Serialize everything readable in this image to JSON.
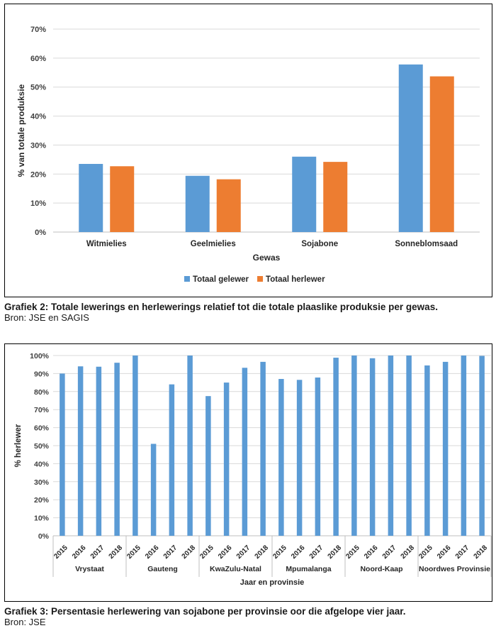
{
  "charts": [
    {
      "caption_title": "Grafiek 2: Totale lewerings en herlewerings relatief tot die totale plaaslike produksie per gewas.",
      "caption_source": "Bron: JSE en SAGIS"
    },
    {
      "caption_title": "Grafiek 3: Persentasie herlewering van sojabone per provinsie oor die afgelope vier jaar.",
      "caption_source": "Bron: JSE"
    }
  ],
  "chart_data": [
    {
      "type": "bar",
      "xlabel": "Gewas",
      "ylabel": "% van totale produksie",
      "ylim": [
        0,
        70
      ],
      "yticks": [
        "0%",
        "10%",
        "20%",
        "30%",
        "40%",
        "50%",
        "60%",
        "70%"
      ],
      "grid": true,
      "legend_position": "bottom",
      "categories": [
        "Witmielies",
        "Geelmielies",
        "Sojabone",
        "Sonneblomsaad"
      ],
      "series": [
        {
          "name": "Totaal gelewer",
          "color": "#5b9bd5",
          "values": [
            23.5,
            19.4,
            26.0,
            57.8
          ]
        },
        {
          "name": "Totaal herlewer",
          "color": "#ed7d31",
          "values": [
            22.7,
            18.2,
            24.2,
            53.7
          ]
        }
      ]
    },
    {
      "type": "bar",
      "xlabel": "Jaar en provinsie",
      "ylabel": "% herlewer",
      "ylim": [
        0,
        100
      ],
      "yticks": [
        "0%",
        "10%",
        "20%",
        "30%",
        "40%",
        "50%",
        "60%",
        "70%",
        "80%",
        "90%",
        "100%"
      ],
      "grid": true,
      "color": "#5b9bd5",
      "groups": [
        {
          "name": "Vrystaat",
          "years": [
            "2015",
            "2016",
            "2017",
            "2018"
          ],
          "values": [
            90,
            94,
            93.8,
            96
          ]
        },
        {
          "name": "Gauteng",
          "years": [
            "2015",
            "2016",
            "2017",
            "2018"
          ],
          "values": [
            100,
            51,
            84,
            100
          ]
        },
        {
          "name": "KwaZulu-Natal",
          "years": [
            "2015",
            "2016",
            "2017",
            "2018"
          ],
          "values": [
            77.5,
            85,
            93.2,
            96.5
          ]
        },
        {
          "name": "Mpumalanga",
          "years": [
            "2015",
            "2016",
            "2017",
            "2018"
          ],
          "values": [
            87,
            86.5,
            87.8,
            98.8
          ]
        },
        {
          "name": "Noord-Kaap",
          "years": [
            "2015",
            "2016",
            "2017",
            "2018"
          ],
          "values": [
            100,
            98.5,
            100,
            100
          ]
        },
        {
          "name": "Noordwes Provinsie",
          "years": [
            "2015",
            "2016",
            "2017",
            "2018"
          ],
          "values": [
            94.5,
            96.5,
            100,
            99.8
          ]
        }
      ]
    }
  ]
}
